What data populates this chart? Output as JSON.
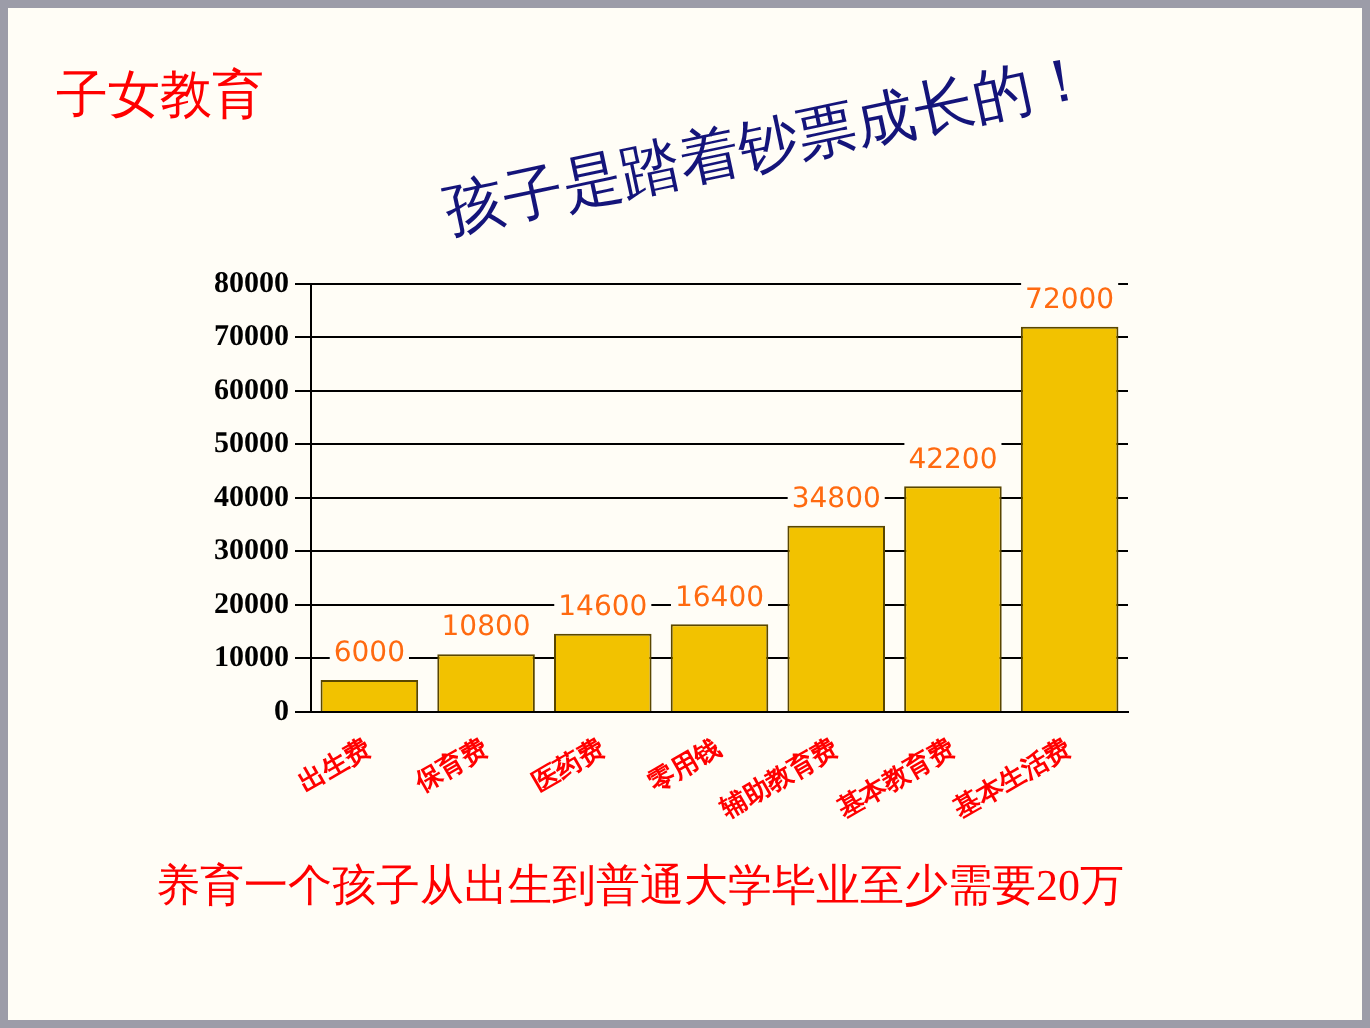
{
  "chart_data": {
    "type": "bar",
    "title": "子女教育",
    "categories": [
      "出生费",
      "保育费",
      "医药费",
      "零用钱",
      "辅助教育费",
      "基本教育费",
      "基本生活费"
    ],
    "values": [
      6000,
      10800,
      14600,
      16400,
      34800,
      42200,
      72000
    ],
    "color": "#f2c200",
    "ylim": [
      0,
      80000
    ],
    "yticks": [
      0,
      10000,
      20000,
      30000,
      40000,
      50000,
      60000,
      70000,
      80000
    ],
    "grid": "y",
    "legend": false,
    "data_labels": true,
    "annotations": [
      "孩子是踏着钞票成长的！",
      "养育一个孩子从出生到普通大学毕业至少需要20万"
    ]
  }
}
